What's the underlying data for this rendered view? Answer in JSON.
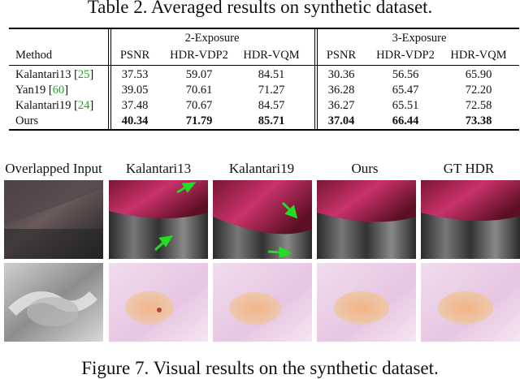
{
  "table": {
    "caption": "Table 2. Averaged results on synthetic dataset.",
    "group_headers": [
      "2-Exposure",
      "3-Exposure"
    ],
    "columns": [
      "Method",
      "PSNR",
      "HDR-VDP2",
      "HDR-VQM",
      "PSNR",
      "HDR-VDP2",
      "HDR-VQM"
    ],
    "rows": [
      {
        "method": "Kalantari13",
        "ref": "25",
        "values": [
          "37.53",
          "59.07",
          "84.51",
          "30.36",
          "56.56",
          "65.90"
        ]
      },
      {
        "method": "Yan19",
        "ref": "60",
        "values": [
          "39.05",
          "70.61",
          "71.27",
          "36.28",
          "65.47",
          "72.20"
        ]
      },
      {
        "method": "Kalantari19",
        "ref": "24",
        "values": [
          "37.48",
          "70.67",
          "84.57",
          "36.27",
          "65.51",
          "72.58"
        ]
      },
      {
        "method": "Ours",
        "ref": "",
        "values": [
          "40.34",
          "71.79",
          "85.71",
          "37.04",
          "66.44",
          "73.38"
        ]
      }
    ]
  },
  "figure": {
    "caption": "Figure 7. Visual results on the synthetic dataset.",
    "column_labels": [
      "Overlapped Input",
      "Kalantari13",
      "Kalantari19",
      "Ours",
      "GT HDR"
    ],
    "arrow_color": "#22dd22"
  }
}
